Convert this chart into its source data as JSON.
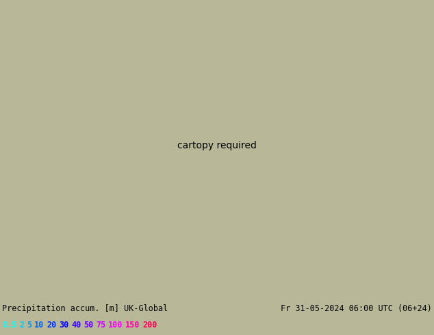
{
  "title_left": "Precipitation accum. [m] UK-Global",
  "title_right": "Fr 31-05-2024 06:00 UTC (06+24)",
  "legend_values": [
    "0.5",
    "2",
    "5",
    "10",
    "20",
    "30",
    "40",
    "50",
    "75",
    "100",
    "150",
    "200"
  ],
  "legend_colors": [
    "#00ffff",
    "#00ccff",
    "#0099ff",
    "#0066ff",
    "#0033ff",
    "#0000ff",
    "#3300ff",
    "#6600ff",
    "#cc00ff",
    "#ff00ff",
    "#ff00aa",
    "#ff0055"
  ],
  "bg_color": "#b8b898",
  "sea_color": "#a0b8c8",
  "land_color": "#c8c8a0",
  "forecast_bg": "#f0f0f8",
  "bottom_bg": "#c8c8b0",
  "text_color": "#000000",
  "red_contour_color": "#dd0000",
  "blue_contour_color": "#0000bb",
  "precip_c0": "#e8f8ff",
  "precip_c1": "#b8e8ff",
  "precip_c2": "#88d0ff",
  "precip_c3": "#50b8f8",
  "precip_c4": "#2090f0",
  "precip_c5": "#0060d8",
  "precip_c6": "#0030a0",
  "precip_green0": "#d0f0c0",
  "precip_green1": "#a0e090",
  "precip_green2": "#70d060",
  "font_size": 8.5
}
